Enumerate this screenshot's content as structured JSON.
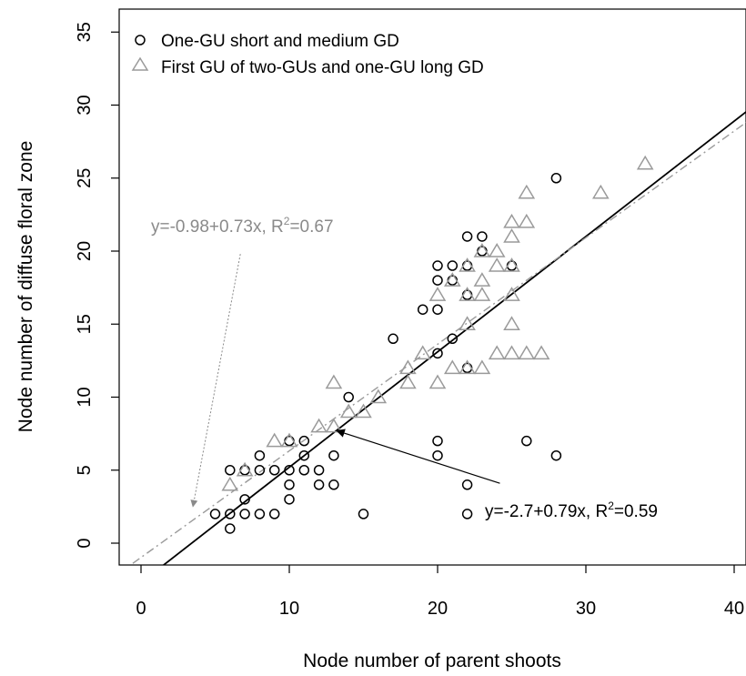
{
  "chart_data": {
    "type": "scatter",
    "xlabel": "Node number of parent shoots",
    "ylabel": "Node number of diffuse floral zone",
    "xlim": [
      -1.5,
      41
    ],
    "ylim": [
      -1.5,
      36.5
    ],
    "xticks": [
      0,
      10,
      20,
      30,
      40
    ],
    "yticks": [
      0,
      5,
      10,
      15,
      20,
      25,
      30,
      35
    ],
    "grid": false,
    "legend_position": "top-left",
    "series": [
      {
        "name": "One-GU short and medium GD",
        "marker": "circle",
        "color": "#000000",
        "points": [
          [
            5,
            2
          ],
          [
            6,
            1
          ],
          [
            6,
            2
          ],
          [
            6,
            5
          ],
          [
            7,
            2
          ],
          [
            7,
            3
          ],
          [
            7,
            5
          ],
          [
            8,
            2
          ],
          [
            8,
            5
          ],
          [
            8,
            6
          ],
          [
            9,
            2
          ],
          [
            9,
            5
          ],
          [
            10,
            3
          ],
          [
            10,
            4
          ],
          [
            10,
            5
          ],
          [
            10,
            7
          ],
          [
            11,
            5
          ],
          [
            11,
            6
          ],
          [
            11,
            7
          ],
          [
            12,
            4
          ],
          [
            12,
            5
          ],
          [
            13,
            4
          ],
          [
            13,
            6
          ],
          [
            14,
            10
          ],
          [
            15,
            2
          ],
          [
            17,
            14
          ],
          [
            19,
            16
          ],
          [
            20,
            6
          ],
          [
            20,
            7
          ],
          [
            20,
            13
          ],
          [
            20,
            16
          ],
          [
            20,
            18
          ],
          [
            20,
            19
          ],
          [
            21,
            14
          ],
          [
            21,
            18
          ],
          [
            21,
            19
          ],
          [
            22,
            2
          ],
          [
            22,
            4
          ],
          [
            22,
            12
          ],
          [
            22,
            17
          ],
          [
            22,
            19
          ],
          [
            22,
            21
          ],
          [
            23,
            20
          ],
          [
            23,
            21
          ],
          [
            25,
            19
          ],
          [
            26,
            7
          ],
          [
            28,
            6
          ],
          [
            28,
            25
          ]
        ]
      },
      {
        "name": "First GU of two-GUs and one-GU long GD",
        "marker": "triangle",
        "color": "#9a9a9a",
        "points": [
          [
            6,
            4
          ],
          [
            7,
            5
          ],
          [
            9,
            7
          ],
          [
            10,
            7
          ],
          [
            12,
            8
          ],
          [
            13,
            8
          ],
          [
            13,
            11
          ],
          [
            14,
            9
          ],
          [
            15,
            9
          ],
          [
            16,
            10
          ],
          [
            18,
            11
          ],
          [
            18,
            12
          ],
          [
            19,
            13
          ],
          [
            20,
            11
          ],
          [
            20,
            17
          ],
          [
            21,
            12
          ],
          [
            21,
            18
          ],
          [
            22,
            12
          ],
          [
            22,
            15
          ],
          [
            22,
            17
          ],
          [
            22,
            19
          ],
          [
            23,
            12
          ],
          [
            23,
            17
          ],
          [
            23,
            18
          ],
          [
            23,
            20
          ],
          [
            24,
            13
          ],
          [
            24,
            19
          ],
          [
            24,
            20
          ],
          [
            25,
            13
          ],
          [
            25,
            15
          ],
          [
            25,
            17
          ],
          [
            25,
            19
          ],
          [
            25,
            21
          ],
          [
            25,
            22
          ],
          [
            26,
            13
          ],
          [
            26,
            22
          ],
          [
            26,
            24
          ],
          [
            27,
            13
          ],
          [
            31,
            24
          ],
          [
            34,
            26
          ]
        ]
      }
    ],
    "fits": [
      {
        "label": "y=-2.7+0.79x,  R²=0.59",
        "label_main": "y=-2.7+0.79x,  R",
        "label_sup": "2",
        "label_tail": "=0.59",
        "intercept": -2.7,
        "slope": 0.79,
        "style": "solid",
        "color": "#000000",
        "arrow_from": [
          24.2,
          4.1
        ],
        "arrow_to": [
          13.2,
          7.7
        ]
      },
      {
        "label": "y=-0.98+0.73x,  R²=0.67",
        "label_main": "y=-0.98+0.73x,  R",
        "label_sup": "2",
        "label_tail": "=0.67",
        "intercept": -0.98,
        "slope": 0.73,
        "style": "dashdot",
        "color": "#9a9a9a",
        "arrow_from": [
          6.7,
          19.8
        ],
        "arrow_to": [
          3.5,
          2.5
        ]
      }
    ]
  }
}
